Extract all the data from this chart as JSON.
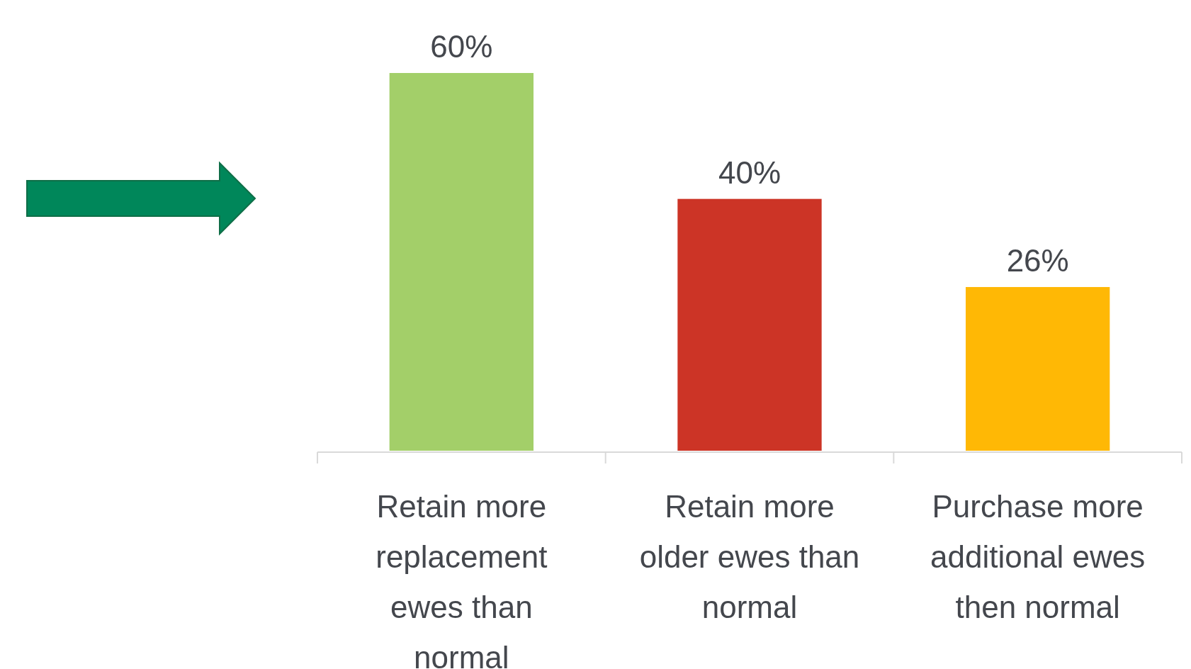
{
  "chart_data": {
    "type": "bar",
    "categories": [
      "Retain more replacement ewes than normal",
      "Retain more older ewes than normal",
      "Purchase more additional ewes then normal"
    ],
    "values": [
      60,
      40,
      26
    ],
    "colors": [
      "#a3cf69",
      "#cc3426",
      "#ffb805"
    ],
    "value_labels": [
      "60%",
      "40%",
      "26%"
    ]
  }
}
